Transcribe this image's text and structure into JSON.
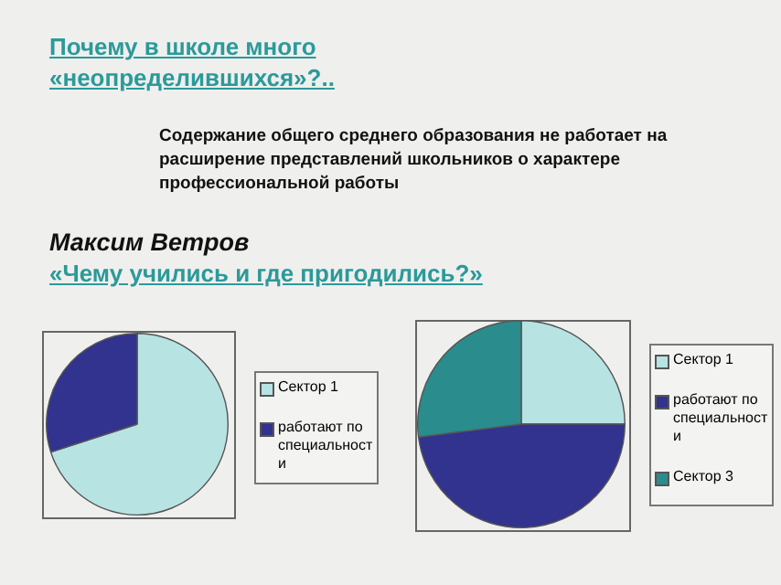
{
  "chart_data": [
    {
      "type": "pie",
      "title": "Почему в школе много «неопределившихся»?..",
      "subtitle": "Содержание общего среднего образования не работает на расширение представлений школьников о характере профессиональной работы",
      "annotations": [
        "Максим Ветров",
        "«Чему учились и где пригодились?»"
      ],
      "categories": [
        "Сектор 1",
        "работают по специальности"
      ],
      "values": [
        70,
        30
      ],
      "colors": [
        "#b8e3e3",
        "#32328f"
      ],
      "legend": "right"
    },
    {
      "type": "pie",
      "categories": [
        "Сектор 1",
        "работают по специальности",
        "Сектор 3"
      ],
      "values": [
        25,
        48,
        27
      ],
      "colors": [
        "#b8e3e3",
        "#32328f",
        "#2a8c8c"
      ],
      "legend": "right"
    }
  ]
}
